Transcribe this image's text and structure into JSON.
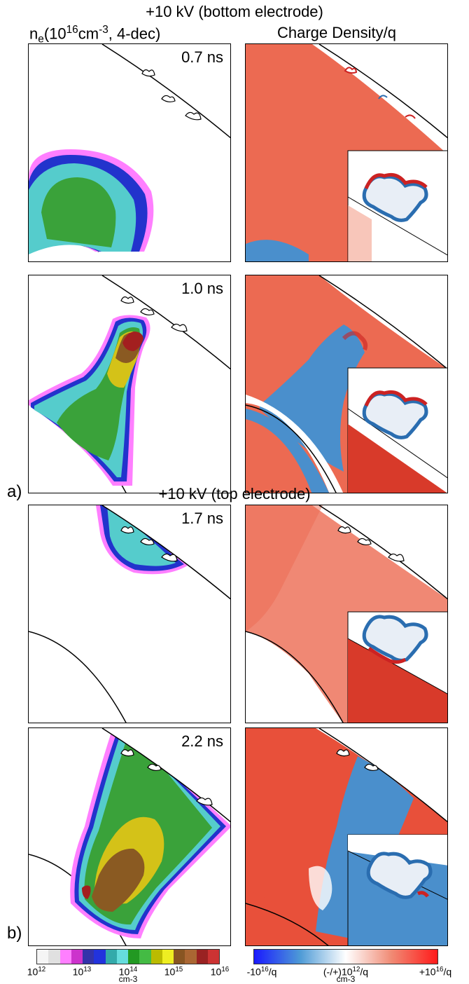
{
  "section_a": {
    "title": "+10 kV (bottom electrode)",
    "label": "a)",
    "times": [
      "0.7 ns",
      "1.0 ns"
    ]
  },
  "section_b": {
    "title": "+10 kV (top electrode)",
    "label": "b)",
    "times": [
      "1.7 ns",
      "2.2 ns"
    ]
  },
  "columns": {
    "left": {
      "base": "n",
      "sub": "e",
      "prefix": "(10",
      "sup1": "16",
      "mid": "cm",
      "sup2": "-3",
      "suffix": ", 4-dec)"
    },
    "right": "Charge Density/q"
  },
  "colorbar_ne": {
    "ticks": [
      {
        "base": "10",
        "exp": "12"
      },
      {
        "base": "10",
        "exp": "13"
      },
      {
        "base": "10",
        "exp": "14"
      },
      {
        "base": "10",
        "exp": "15"
      },
      {
        "base": "10",
        "exp": "16"
      }
    ],
    "unit": "cm-3",
    "colors": [
      "#f5f5f5",
      "#e0e0e0",
      "#ff7fff",
      "#cc33cc",
      "#3333aa",
      "#2233dd",
      "#33aaaa",
      "#66dddd",
      "#229922",
      "#44bb44",
      "#bbbb00",
      "#eeee22",
      "#885522",
      "#aa6633",
      "#992222",
      "#cc3333"
    ]
  },
  "colorbar_charge": {
    "left": {
      "prefix": "-10",
      "exp": "16",
      "suffix": "/q"
    },
    "center": {
      "prefix": "(-/+)10",
      "exp": "12",
      "suffix": "/q"
    },
    "right": {
      "prefix": "+10",
      "exp": "16",
      "suffix": "/q"
    },
    "unit": "cm-3",
    "gradient": [
      "#1a1aff",
      "#4d9ad6",
      "#ffffff",
      "#f08a74",
      "#ff1a1a"
    ]
  },
  "colors": {
    "positive": "#e8503a",
    "negative": "#4a8fcc",
    "light_positive": "#f4a08c"
  }
}
